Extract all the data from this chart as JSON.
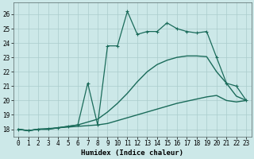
{
  "xlabel": "Humidex (Indice chaleur)",
  "background_color": "#cce8e8",
  "grid_color": "#aacccc",
  "line_color": "#1a6b5a",
  "xlim": [
    -0.5,
    23.5
  ],
  "ylim": [
    17.5,
    26.8
  ],
  "yticks": [
    18,
    19,
    20,
    21,
    22,
    23,
    24,
    25,
    26
  ],
  "xticks": [
    0,
    1,
    2,
    3,
    4,
    5,
    6,
    7,
    8,
    9,
    10,
    11,
    12,
    13,
    14,
    15,
    16,
    17,
    18,
    19,
    20,
    21,
    22,
    23
  ],
  "series": [
    {
      "x": [
        0,
        1,
        2,
        3,
        4,
        5,
        6,
        7,
        8,
        9,
        10,
        11,
        12,
        13,
        14,
        15,
        16,
        17,
        18,
        19,
        20,
        21,
        22,
        23
      ],
      "y": [
        18,
        17.9,
        18.0,
        18.0,
        18.1,
        18.15,
        18.2,
        18.25,
        18.3,
        18.4,
        18.6,
        18.8,
        19.0,
        19.2,
        19.4,
        19.6,
        19.8,
        19.95,
        20.1,
        20.25,
        20.35,
        20.0,
        19.9,
        20.0
      ],
      "marker": null,
      "linewidth": 1.0
    },
    {
      "x": [
        0,
        1,
        2,
        3,
        4,
        5,
        6,
        7,
        8,
        9,
        10,
        11,
        12,
        13,
        14,
        15,
        16,
        17,
        18,
        19,
        20,
        21,
        22,
        23
      ],
      "y": [
        18,
        17.9,
        18.0,
        18.0,
        18.1,
        18.2,
        18.3,
        18.5,
        18.7,
        19.2,
        19.8,
        20.5,
        21.3,
        22.0,
        22.5,
        22.8,
        23.0,
        23.1,
        23.1,
        23.05,
        22.0,
        21.2,
        20.3,
        20.0
      ],
      "marker": null,
      "linewidth": 1.0
    },
    {
      "x": [
        0,
        1,
        2,
        3,
        4,
        5,
        6,
        7,
        8,
        9,
        10,
        11,
        12,
        13,
        14,
        15,
        16,
        17,
        18,
        19,
        20,
        21,
        22,
        23
      ],
      "y": [
        18,
        17.9,
        18.0,
        18.05,
        18.1,
        18.2,
        18.3,
        21.2,
        18.3,
        23.8,
        23.8,
        26.2,
        24.6,
        24.8,
        24.8,
        25.4,
        25.0,
        24.8,
        24.7,
        24.8,
        23.0,
        21.2,
        21.0,
        20.0
      ],
      "marker": "+",
      "linewidth": 0.9
    }
  ]
}
